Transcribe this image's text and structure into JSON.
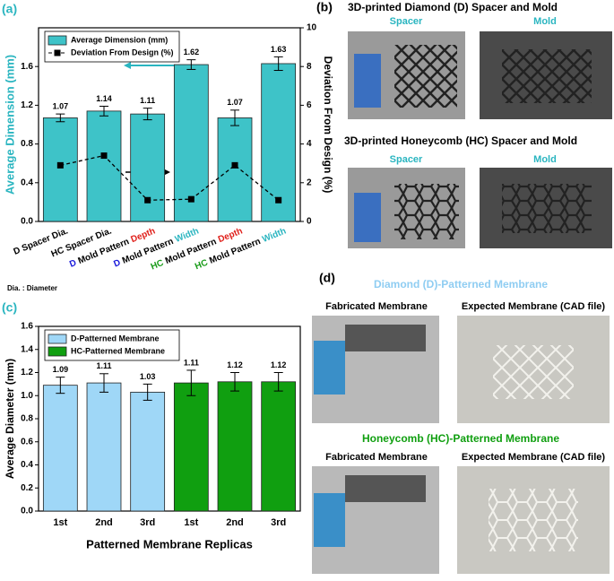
{
  "chart_data": [
    {
      "type": "bar",
      "panel_label": "(a)",
      "note": "Dia. : Diameter",
      "y_label": "Average Dimension (mm)",
      "y2_label": "Deviation From Design (%)",
      "categories": [
        [
          "D Spacer Dia."
        ],
        [
          "HC Spacer Dia."
        ],
        [
          "D",
          "Mold Pattern",
          "Depth"
        ],
        [
          "D",
          "Mold Pattern",
          "Width"
        ],
        [
          "HC",
          "Mold Pattern",
          "Depth"
        ],
        [
          "HC",
          "Mold Pattern",
          "Width"
        ]
      ],
      "category_colors": [
        [
          "#000000"
        ],
        [
          "#000000"
        ],
        [
          "#1a1adb",
          "#000000",
          "#e0201b"
        ],
        [
          "#1a1adb",
          "#000000",
          "#2ab5c0"
        ],
        [
          "#1a9c1a",
          "#000000",
          "#e0201b"
        ],
        [
          "#1a9c1a",
          "#000000",
          "#2ab5c0"
        ]
      ],
      "series": [
        {
          "name": "Average Dimension (mm)",
          "type": "bar",
          "color": "#3ec3c8",
          "values": [
            1.07,
            1.14,
            1.11,
            1.62,
            1.07,
            1.63
          ],
          "errors": [
            0.04,
            0.05,
            0.06,
            0.05,
            0.08,
            0.07
          ]
        },
        {
          "name": "Deviation From Design (%)",
          "type": "line",
          "axis": "y2",
          "color": "#000000",
          "values": [
            2.9,
            3.4,
            1.1,
            1.15,
            2.9,
            1.1
          ]
        }
      ],
      "ylim": [
        0,
        2.0
      ],
      "yticks": [
        {
          "value": 0,
          "label": "0.0"
        },
        0.4,
        0.8,
        1.2,
        1.6
      ],
      "y2lim": [
        0,
        10
      ],
      "y2ticks": [
        0,
        2,
        4,
        6,
        8,
        10
      ],
      "legend": "upper left",
      "label_color": "#2ab5c0"
    },
    {
      "type": "bar",
      "panel_label": "(c)",
      "x_label": "Patterned Membrane Replicas",
      "y_label": "Average Diameter (mm)",
      "categories": [
        "1st",
        "2nd",
        "3rd",
        "1st",
        "2nd",
        "3rd"
      ],
      "series": [
        {
          "name": "D-Patterned Membrane",
          "type": "bar",
          "color": "#9fd7f7",
          "values": [
            1.09,
            1.11,
            1.03,
            null,
            null,
            null
          ],
          "errors": [
            0.07,
            0.08,
            0.07,
            null,
            null,
            null
          ]
        },
        {
          "name": "HC-Patterned Membrane",
          "type": "bar",
          "color": "#109f10",
          "values": [
            null,
            null,
            null,
            1.11,
            1.12,
            1.12
          ],
          "errors": [
            null,
            null,
            null,
            0.11,
            0.08,
            0.08
          ]
        }
      ],
      "ylim": [
        0,
        1.6
      ],
      "yticks": [
        {
          "value": 0,
          "label": "0.0"
        },
        0.2,
        0.4,
        0.6,
        0.8,
        {
          "value": 1.0,
          "label": "1.0"
        },
        1.2,
        1.4,
        1.6
      ],
      "legend": "upper left",
      "label_color": "#2ab5c0"
    }
  ],
  "panel_b": {
    "label": "(b)",
    "title_1": "3D-printed Diamond (D) Spacer and Mold",
    "spacer_1": "Spacer",
    "mold_1": "Mold",
    "title_2": "3D-printed Honeycomb (HC) Spacer and Mold",
    "spacer_2": "Spacer",
    "mold_2": "Mold"
  },
  "panel_d": {
    "label": "(d)",
    "title_1": "Diamond (D)-Patterned Membrane",
    "left_1": "Fabricated Membrane",
    "right_1": "Expected Membrane (CAD file)",
    "title_2": "Honeycomb (HC)-Patterned Membrane",
    "left_2": "Fabricated Membrane",
    "right_2": "Expected Membrane (CAD file)"
  }
}
